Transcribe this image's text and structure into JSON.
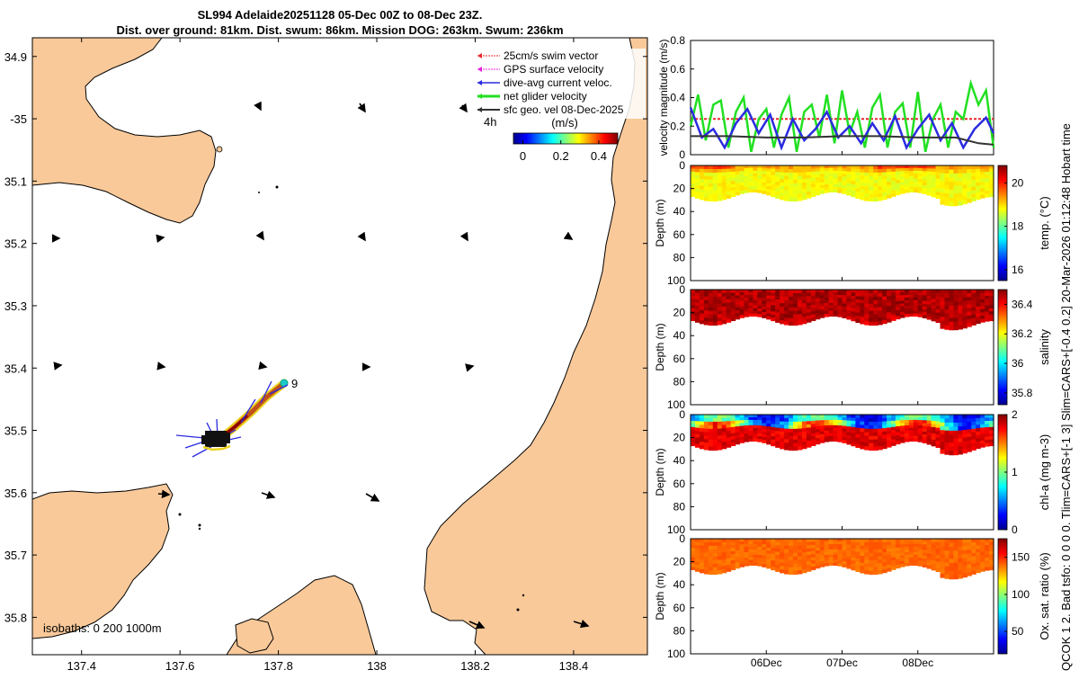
{
  "title": {
    "line1": "SL994 Adelaide20251128 05-Dec 00Z to 08-Dec 23Z.",
    "line2": "Dist. over ground: 81km. Dist. swum: 86km. Mission DOG: 263km. Swum: 236km"
  },
  "right_text": {
    "vertical": "QCOK 1  2. Bad tsfo: 0  0  0  0.  Tlim=CARS+[-1 3] Slim=CARS+[-0.4 0.2]  20-Mar-2026 01:12:48 Hobart time"
  },
  "colors": {
    "land": "#F9C99A",
    "sea": "#FFFFFF",
    "swim_vector": "#E8262A",
    "gps_velocity": "#E61FE0",
    "dive_avg": "#2A2AE0",
    "net_glider": "#22E022",
    "sfc_geo": "#333333"
  },
  "map": {
    "legend": [
      {
        "label": "25cm/s swim vector",
        "color_key": "swim_vector",
        "width": 1,
        "style": "dotted"
      },
      {
        "label": "GPS surface velocity",
        "color_key": "gps_velocity",
        "width": 1,
        "style": "dotted"
      },
      {
        "label": "dive-avg current veloc.",
        "color_key": "dive_avg",
        "width": 1.5,
        "style": "solid"
      },
      {
        "label": "net glider velocity",
        "color_key": "net_glider",
        "width": 3,
        "style": "solid"
      },
      {
        "label": "sfc geo. vel 08-Dec-2025",
        "color_key": "sfc_geo",
        "width": 2,
        "style": "solid"
      }
    ],
    "time_label": "4h",
    "colorbar": {
      "title": "(m/s)",
      "ticks": [
        "0",
        "0.2",
        "0.4"
      ],
      "min": -0.05,
      "max": 0.5
    },
    "isobaths_label": "isobaths: 0   200  1000m",
    "track_label": "9",
    "lon_range": [
      137.3,
      138.55
    ],
    "lat_range": [
      34.87,
      35.86
    ],
    "x_ticks": [
      {
        "value": 137.4,
        "label": "137.4"
      },
      {
        "value": 137.6,
        "label": "137.6"
      },
      {
        "value": 137.8,
        "label": "137.8"
      },
      {
        "value": 138.0,
        "label": "138"
      },
      {
        "value": 138.2,
        "label": "138.2"
      },
      {
        "value": 138.4,
        "label": "138.4"
      }
    ],
    "y_ticks": [
      {
        "value": 34.9,
        "label": "34.9"
      },
      {
        "value": 35.0,
        "label": "-35"
      },
      {
        "value": 35.1,
        "label": "35.1"
      },
      {
        "value": 35.2,
        "label": "35.2"
      },
      {
        "value": 35.3,
        "label": "35.3"
      },
      {
        "value": 35.4,
        "label": "35.4"
      },
      {
        "value": 35.5,
        "label": "35.5"
      },
      {
        "value": 35.6,
        "label": "35.6"
      },
      {
        "value": 35.7,
        "label": "35.7"
      },
      {
        "value": 35.8,
        "label": "35.8"
      }
    ]
  },
  "chart_data": [
    {
      "type": "line",
      "title": "",
      "xlabel": "",
      "ylabel": "velocity magnitude (m/s)",
      "ylim": [
        0,
        0.8
      ],
      "yticks": [
        "0",
        "0.2",
        "0.4",
        "0.6",
        "0.8"
      ],
      "x_range_days": [
        0,
        4
      ],
      "x_ticks": [
        {
          "value": 1,
          "label": "06Dec"
        },
        {
          "value": 2,
          "label": "07Dec"
        },
        {
          "value": 3,
          "label": "08Dec"
        }
      ],
      "series": [
        {
          "name": "swim 25cm/s",
          "color_key": "swim_vector",
          "style": "dashed",
          "x": [
            0,
            4
          ],
          "values": [
            0.25,
            0.25
          ]
        },
        {
          "name": "net glider velocity",
          "color_key": "net_glider",
          "style": "solid",
          "x": [
            0.0,
            0.1,
            0.2,
            0.3,
            0.4,
            0.5,
            0.6,
            0.7,
            0.8,
            0.9,
            1.0,
            1.1,
            1.2,
            1.3,
            1.4,
            1.5,
            1.6,
            1.7,
            1.8,
            1.9,
            2.0,
            2.1,
            2.2,
            2.3,
            2.4,
            2.5,
            2.6,
            2.7,
            2.8,
            2.9,
            3.0,
            3.1,
            3.2,
            3.3,
            3.4,
            3.5,
            3.6,
            3.7,
            3.8,
            3.9,
            4.0
          ],
          "values": [
            0.2,
            0.42,
            0.1,
            0.35,
            0.38,
            0.05,
            0.3,
            0.4,
            0.02,
            0.25,
            0.32,
            0.05,
            0.28,
            0.4,
            0.02,
            0.3,
            0.35,
            0.12,
            0.42,
            0.08,
            0.45,
            0.15,
            0.3,
            0.05,
            0.33,
            0.42,
            0.05,
            0.3,
            0.36,
            0.05,
            0.44,
            0.02,
            0.25,
            0.35,
            0.05,
            0.3,
            0.25,
            0.5,
            0.35,
            0.45,
            0.05
          ]
        },
        {
          "name": "dive-avg current veloc.",
          "color_key": "dive_avg",
          "style": "solid",
          "x": [
            0.0,
            0.15,
            0.3,
            0.45,
            0.6,
            0.75,
            0.9,
            1.05,
            1.2,
            1.35,
            1.5,
            1.65,
            1.8,
            1.95,
            2.1,
            2.25,
            2.4,
            2.55,
            2.7,
            2.85,
            3.0,
            3.15,
            3.3,
            3.45,
            3.6,
            3.75,
            3.9,
            4.0
          ],
          "values": [
            0.33,
            0.12,
            0.18,
            0.05,
            0.22,
            0.32,
            0.15,
            0.28,
            0.05,
            0.25,
            0.1,
            0.18,
            0.3,
            0.12,
            0.2,
            0.08,
            0.22,
            0.1,
            0.27,
            0.05,
            0.18,
            0.28,
            0.1,
            0.22,
            0.05,
            0.18,
            0.26,
            0.15
          ]
        },
        {
          "name": "sfc geo. vel",
          "color_key": "sfc_geo",
          "style": "solid",
          "x": [
            0.0,
            0.5,
            1.0,
            1.5,
            2.0,
            2.5,
            3.0,
            3.5,
            3.8,
            4.0
          ],
          "values": [
            0.13,
            0.13,
            0.12,
            0.12,
            0.13,
            0.13,
            0.12,
            0.12,
            0.08,
            0.07
          ]
        }
      ]
    },
    {
      "type": "heatmap",
      "ylabel": "Depth (m)",
      "colorbar_label": "temp. (°C)",
      "ylim": [
        100,
        0
      ],
      "yticks": [
        "0",
        "20",
        "40",
        "60",
        "80",
        "100"
      ],
      "clim": [
        15.5,
        20.8
      ],
      "cticks": [
        "16",
        "18",
        "20"
      ],
      "colormap": "jet",
      "data_depth_m": [
        0,
        30
      ],
      "typical_value": 18.8,
      "surface_value": 19.8
    },
    {
      "type": "heatmap",
      "ylabel": "Depth (m)",
      "colorbar_label": "salinity",
      "ylim": [
        100,
        0
      ],
      "yticks": [
        "0",
        "20",
        "40",
        "60",
        "80",
        "100"
      ],
      "clim": [
        35.72,
        36.5
      ],
      "cticks": [
        "35.8",
        "36",
        "36.2",
        "36.4"
      ],
      "colormap": "jet",
      "data_depth_m": [
        0,
        30
      ],
      "typical_value": 36.5
    },
    {
      "type": "heatmap",
      "ylabel": "Depth (m)",
      "colorbar_label": "chl-a (mg m-3)",
      "ylim": [
        100,
        0
      ],
      "yticks": [
        "0",
        "20",
        "40",
        "60",
        "80",
        "100"
      ],
      "clim": [
        0,
        2
      ],
      "cticks": [
        "0",
        "1",
        "2"
      ],
      "colormap": "jet",
      "data_depth_m": [
        0,
        30
      ],
      "typical_value": 1.9,
      "surface_value": 0.6
    },
    {
      "type": "heatmap",
      "ylabel": "Depth (m)",
      "colorbar_label": "Ox. sat. ratio (%)",
      "ylim": [
        100,
        0
      ],
      "yticks": [
        "0",
        "20",
        "40",
        "60",
        "80",
        "100"
      ],
      "clim": [
        20,
        175
      ],
      "cticks": [
        "50",
        "100",
        "150"
      ],
      "colormap": "jet",
      "data_depth_m": [
        0,
        30
      ],
      "typical_value": 140,
      "x_ticks": [
        {
          "value": 1,
          "label": "06Dec"
        },
        {
          "value": 2,
          "label": "07Dec"
        },
        {
          "value": 3,
          "label": "08Dec"
        }
      ]
    }
  ]
}
